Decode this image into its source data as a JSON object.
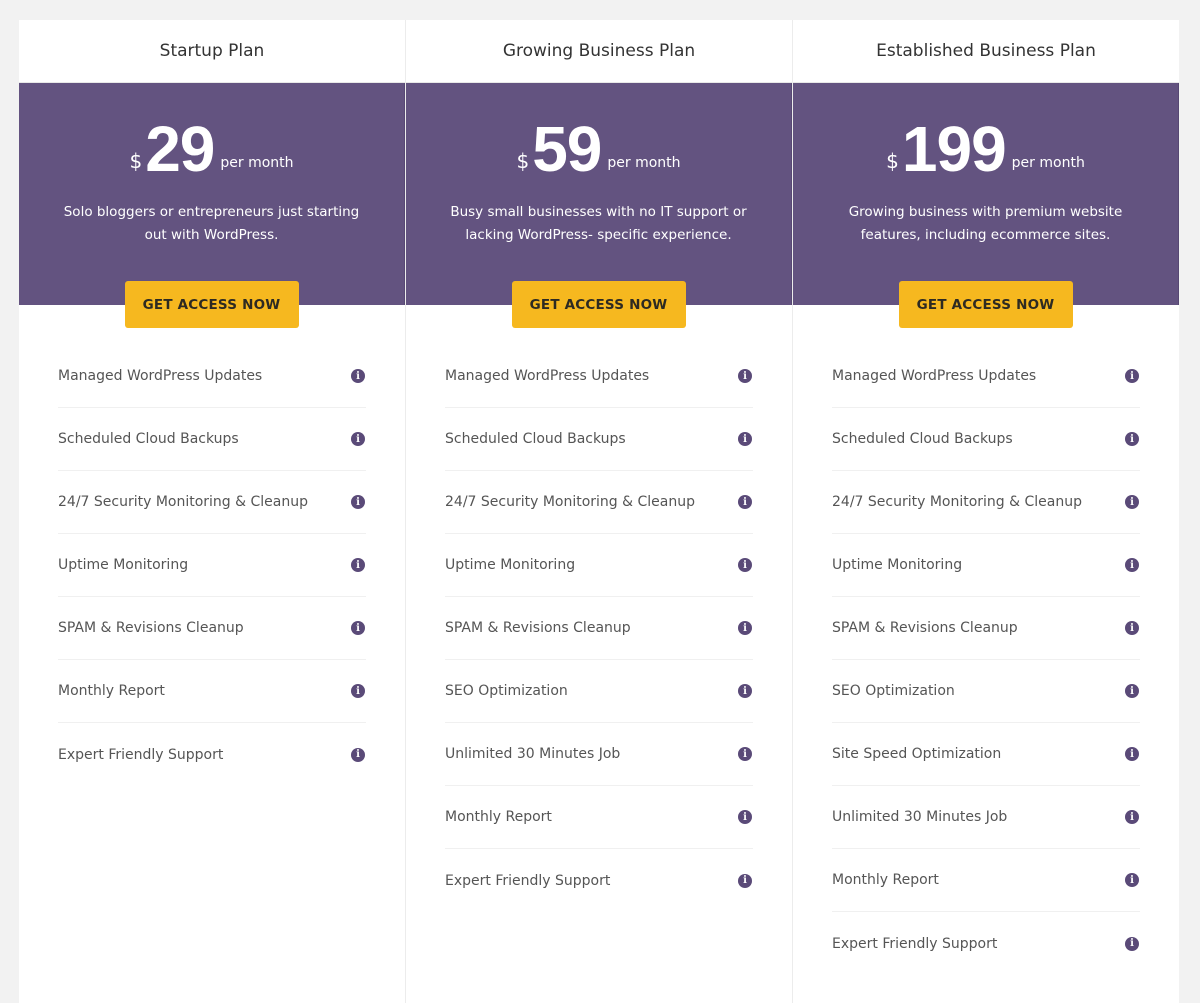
{
  "colors": {
    "band": "#635380",
    "button": "#f6b81f",
    "info_icon": "#5a4a78"
  },
  "plans": [
    {
      "name": "Startup Plan",
      "currency": "$",
      "amount": "29",
      "period": "per month",
      "description": "Solo bloggers or entrepreneurs just starting out with WordPress.",
      "button": "GET ACCESS NOW",
      "features": [
        "Managed WordPress Updates",
        "Scheduled Cloud Backups",
        "24/7 Security Monitoring & Cleanup",
        "Uptime Monitoring",
        "SPAM & Revisions Cleanup",
        "Monthly Report",
        "Expert Friendly Support"
      ]
    },
    {
      "name": "Growing Business Plan",
      "currency": "$",
      "amount": "59",
      "period": "per month",
      "description": "Busy small businesses with no IT support or lacking WordPress- specific experience.",
      "button": "GET ACCESS NOW",
      "features": [
        "Managed WordPress Updates",
        "Scheduled Cloud Backups",
        "24/7 Security Monitoring & Cleanup",
        "Uptime Monitoring",
        "SPAM & Revisions Cleanup",
        "SEO Optimization",
        "Unlimited 30 Minutes Job",
        "Monthly Report",
        "Expert Friendly Support"
      ]
    },
    {
      "name": "Established Business Plan",
      "currency": "$",
      "amount": "199",
      "period": "per month",
      "description": "Growing business with premium website features, including ecommerce sites.",
      "button": "GET ACCESS NOW",
      "features": [
        "Managed WordPress Updates",
        "Scheduled Cloud Backups",
        "24/7 Security Monitoring & Cleanup",
        "Uptime Monitoring",
        "SPAM & Revisions Cleanup",
        "SEO Optimization",
        "Site Speed Optimization",
        "Unlimited 30 Minutes Job",
        "Monthly Report",
        "Expert Friendly Support"
      ]
    }
  ]
}
